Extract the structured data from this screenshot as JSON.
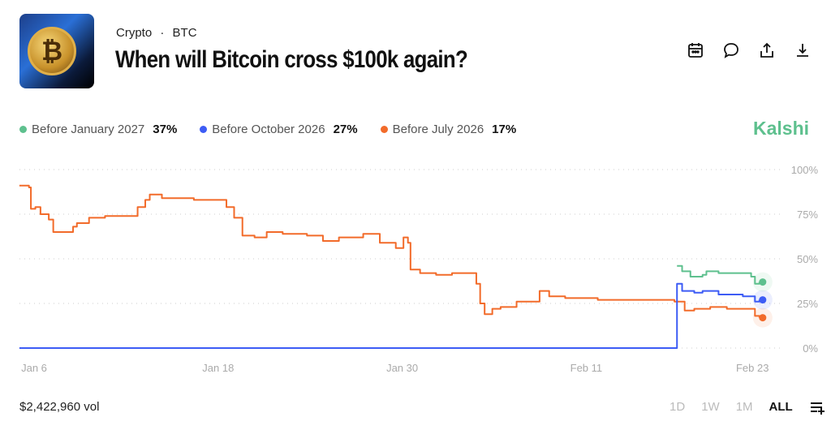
{
  "header": {
    "category": "Crypto",
    "separator": "·",
    "tag": "BTC",
    "title": "When will Bitcoin cross $100k again?",
    "icons": [
      "calendar-icon",
      "comment-icon",
      "share-icon",
      "download-icon"
    ]
  },
  "brand": "Kalshi",
  "legend": [
    {
      "label": "Before January 2027",
      "value": "37%",
      "color": "#5ec08e"
    },
    {
      "label": "Before October 2026",
      "value": "27%",
      "color": "#3d5cf5"
    },
    {
      "label": "Before July 2026",
      "value": "17%",
      "color": "#f26b2a"
    }
  ],
  "footer": {
    "volume": "$2,422,960 vol",
    "timeframes": [
      "1D",
      "1W",
      "1M",
      "ALL"
    ],
    "active_timeframe": "ALL"
  },
  "chart_data": {
    "type": "line",
    "x_ticks": [
      "Jan 6",
      "Jan 18",
      "Jan 30",
      "Feb 11",
      "Feb 23"
    ],
    "y_ticks": [
      "0%",
      "25%",
      "50%",
      "75%",
      "100%"
    ],
    "ylim": [
      0,
      100
    ],
    "grid": "dotted horizontal",
    "series": [
      {
        "name": "Before July 2026",
        "color": "#f26b2a",
        "points": [
          [
            "2026-01-05T01",
            91
          ],
          [
            "2026-01-05T16",
            90
          ],
          [
            "2026-01-05T19",
            78
          ],
          [
            "2026-01-06T02",
            79
          ],
          [
            "2026-01-06T10",
            75
          ],
          [
            "2026-01-06T23",
            72
          ],
          [
            "2026-01-07T06",
            65
          ],
          [
            "2026-01-08T00",
            65
          ],
          [
            "2026-01-08T13",
            68
          ],
          [
            "2026-01-08T19",
            70
          ],
          [
            "2026-01-09T14",
            73
          ],
          [
            "2026-01-10T15",
            74
          ],
          [
            "2026-01-12T05",
            74
          ],
          [
            "2026-01-12T18",
            79
          ],
          [
            "2026-01-13T06",
            83
          ],
          [
            "2026-01-13T13",
            86
          ],
          [
            "2026-01-14T08",
            84
          ],
          [
            "2026-01-15T09",
            84
          ],
          [
            "2026-01-16T10",
            83
          ],
          [
            "2026-01-17T11",
            83
          ],
          [
            "2026-01-18T13",
            79
          ],
          [
            "2026-01-19T01",
            73
          ],
          [
            "2026-01-19T14",
            63
          ],
          [
            "2026-01-20T09",
            62
          ],
          [
            "2026-01-21T04",
            65
          ],
          [
            "2026-01-22T05",
            64
          ],
          [
            "2026-01-23T19",
            63
          ],
          [
            "2026-01-24T20",
            60
          ],
          [
            "2026-01-25T21",
            62
          ],
          [
            "2026-01-27T11",
            64
          ],
          [
            "2026-01-28T13",
            59
          ],
          [
            "2026-01-29T14",
            56
          ],
          [
            "2026-01-30T02",
            62
          ],
          [
            "2026-01-30T09",
            59
          ],
          [
            "2026-01-30T13",
            44
          ],
          [
            "2026-01-31T04",
            42
          ],
          [
            "2026-02-01T05",
            41
          ],
          [
            "2026-02-02T06",
            42
          ],
          [
            "2026-02-03T08",
            42
          ],
          [
            "2026-02-03T20",
            36
          ],
          [
            "2026-02-04T02",
            25
          ],
          [
            "2026-02-04T09",
            19
          ],
          [
            "2026-02-04T21",
            22
          ],
          [
            "2026-02-05T10",
            23
          ],
          [
            "2026-02-06T11",
            26
          ],
          [
            "2026-02-07T13",
            26
          ],
          [
            "2026-02-07T23",
            32
          ],
          [
            "2026-02-08T14",
            29
          ],
          [
            "2026-02-09T15",
            28
          ],
          [
            "2026-02-11T18",
            27
          ],
          [
            "2026-02-13T20",
            27
          ],
          [
            "2026-02-15T10",
            27
          ],
          [
            "2026-02-16T18",
            26
          ],
          [
            "2026-02-17T10",
            21
          ],
          [
            "2026-02-18T01",
            22
          ],
          [
            "2026-02-19T02",
            23
          ],
          [
            "2026-02-20T04",
            22
          ],
          [
            "2026-02-21T18",
            22
          ],
          [
            "2026-02-22T00",
            18
          ],
          [
            "2026-02-22T07",
            17
          ]
        ]
      },
      {
        "name": "Before October 2026",
        "color": "#3d5cf5",
        "points": [
          [
            "2026-01-05T01",
            0
          ],
          [
            "2026-02-16T22",
            0
          ],
          [
            "2026-02-16T22",
            36
          ],
          [
            "2026-02-17T06",
            32
          ],
          [
            "2026-02-18T01",
            31
          ],
          [
            "2026-02-18T14",
            32
          ],
          [
            "2026-02-19T15",
            30
          ],
          [
            "2026-02-21T05",
            29
          ],
          [
            "2026-02-22T00",
            26
          ],
          [
            "2026-02-22T07",
            27
          ]
        ]
      },
      {
        "name": "Before January 2027",
        "color": "#5ec08e",
        "points": [
          [
            "2026-02-16T22",
            46
          ],
          [
            "2026-02-17T06",
            43
          ],
          [
            "2026-02-17T19",
            40
          ],
          [
            "2026-02-18T14",
            41
          ],
          [
            "2026-02-18T20",
            43
          ],
          [
            "2026-02-19T15",
            42
          ],
          [
            "2026-02-21T05",
            42
          ],
          [
            "2026-02-21T18",
            40
          ],
          [
            "2026-02-22T00",
            36
          ],
          [
            "2026-02-22T07",
            37
          ]
        ]
      }
    ]
  }
}
